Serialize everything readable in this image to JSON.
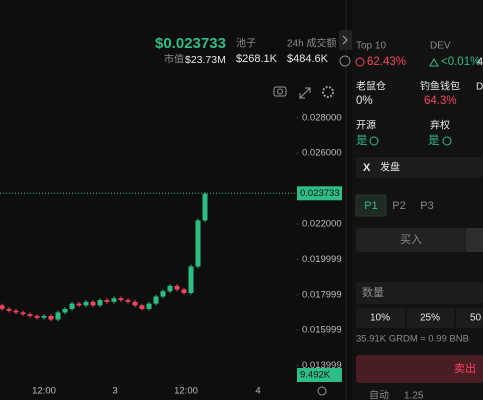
{
  "header": {
    "price": "$0.023733",
    "mcap_label": "市值",
    "mcap": "$23.73M",
    "pool_label": "池子",
    "pool": "$268.1K",
    "vol_label": "24h 成交额",
    "vol": "$484.6K"
  },
  "stats": [
    {
      "label": "Top 10",
      "value": "62.43%"
    },
    {
      "label": "DEV",
      "value": "<0.01%"
    },
    {
      "label": "老鼠仓",
      "value": "0%"
    },
    {
      "label": "钓鱼钱包",
      "value": "64.3%"
    },
    {
      "label": "开源",
      "value": "是"
    },
    {
      "label": "弃权",
      "value": "是"
    }
  ],
  "partial": [
    "4",
    "D"
  ],
  "search": {
    "icon": "X",
    "text": "发盘"
  },
  "tabs": [
    "P1",
    "P2",
    "P3"
  ],
  "buy": "买入",
  "amount": "数量",
  "percents": [
    "10%",
    "25%",
    "50"
  ],
  "estimate": "35.91K GRDM ≈ 0.99 BNB",
  "sell": "卖出",
  "footer": [
    "自动",
    "1.25"
  ],
  "chart": {
    "type": "candlestick",
    "ylim": [
      0.0129,
      0.0307
    ],
    "yticks": [
      {
        "value": 0.028,
        "label": "0.028000"
      },
      {
        "value": 0.026,
        "label": "0.026000"
      },
      {
        "value": 0.022,
        "label": "0.022000"
      },
      0.019999,
      0.017999,
      0.015999,
      0.013999
    ],
    "last_price": {
      "value": 0.023733,
      "label": "0.023733"
    },
    "volume_label": "9.492K",
    "xticks": [
      "12:00",
      "3",
      "12:00",
      "4"
    ],
    "up_color": "#2ebd85",
    "down_color": "#f6465d",
    "candles": [
      [
        0.0174,
        0.0175,
        0.0171,
        0.0172
      ],
      [
        0.0172,
        0.0173,
        0.017,
        0.0171
      ],
      [
        0.0171,
        0.0172,
        0.0169,
        0.017
      ],
      [
        0.017,
        0.0171,
        0.0168,
        0.0169
      ],
      [
        0.0169,
        0.017,
        0.0167,
        0.0168
      ],
      [
        0.0168,
        0.0169,
        0.0166,
        0.0167
      ],
      [
        0.0167,
        0.0169,
        0.0166,
        0.0168
      ],
      [
        0.0168,
        0.0169,
        0.0165,
        0.0166
      ],
      [
        0.0166,
        0.0171,
        0.0165,
        0.017
      ],
      [
        0.017,
        0.0173,
        0.0169,
        0.0172
      ],
      [
        0.0172,
        0.0176,
        0.0171,
        0.0175
      ],
      [
        0.0175,
        0.0176,
        0.0173,
        0.0174
      ],
      [
        0.0174,
        0.0177,
        0.0173,
        0.0176
      ],
      [
        0.0176,
        0.0177,
        0.0173,
        0.0174
      ],
      [
        0.0174,
        0.0178,
        0.0173,
        0.0177
      ],
      [
        0.0177,
        0.0178,
        0.0175,
        0.0176
      ],
      [
        0.0176,
        0.0179,
        0.0175,
        0.0178
      ],
      [
        0.0178,
        0.0179,
        0.0176,
        0.0177
      ],
      [
        0.0177,
        0.0178,
        0.0175,
        0.0176
      ],
      [
        0.0176,
        0.0177,
        0.0173,
        0.0174
      ],
      [
        0.0174,
        0.0175,
        0.0171,
        0.0172
      ],
      [
        0.0172,
        0.0176,
        0.0171,
        0.0175
      ],
      [
        0.0175,
        0.018,
        0.0174,
        0.0179
      ],
      [
        0.0179,
        0.0183,
        0.0178,
        0.0182
      ],
      [
        0.0182,
        0.0186,
        0.0181,
        0.0185
      ],
      [
        0.0185,
        0.0186,
        0.0182,
        0.0183
      ],
      [
        0.0183,
        0.0184,
        0.018,
        0.0181
      ],
      [
        0.0181,
        0.0197,
        0.018,
        0.0196
      ],
      [
        0.0196,
        0.0223,
        0.0195,
        0.0222
      ],
      [
        0.0222,
        0.0238,
        0.0221,
        0.0237
      ]
    ]
  }
}
